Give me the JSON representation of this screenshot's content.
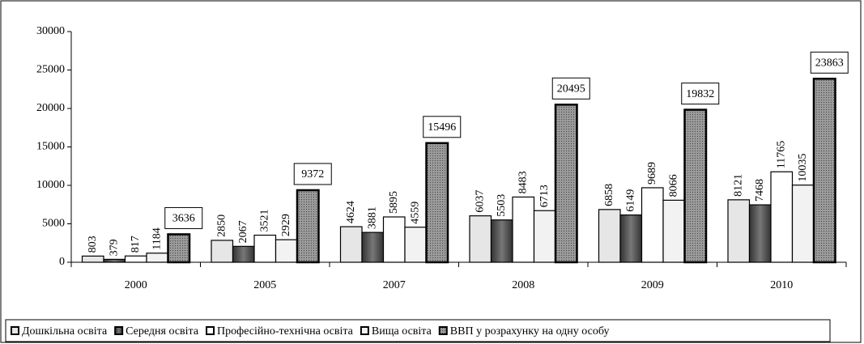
{
  "chart_data": {
    "type": "bar",
    "categories": [
      "2000",
      "2005",
      "2007",
      "2008",
      "2009",
      "2010"
    ],
    "series": [
      {
        "name": "Дошкільна освіта",
        "color": "#e6e6e6",
        "values": [
          803,
          2850,
          4624,
          6037,
          6858,
          8121
        ]
      },
      {
        "name": "Середня освіта",
        "color": "#4d4d4d",
        "values": [
          379,
          2067,
          3881,
          5503,
          6149,
          7468
        ]
      },
      {
        "name": "Професійно-технічна освіта",
        "color": "#ffffff",
        "values": [
          817,
          3521,
          5895,
          8483,
          9689,
          11765
        ]
      },
      {
        "name": "Вища освіта",
        "color": "#f2f2f2",
        "values": [
          1184,
          2929,
          4559,
          6713,
          8066,
          10035
        ]
      },
      {
        "name": "ВВП у розрахунку на одну особу",
        "color": "#7a7a7a",
        "values": [
          3636,
          9372,
          15496,
          20495,
          19832,
          23863
        ]
      }
    ],
    "ylim": [
      0,
      30000
    ],
    "yticks": [
      0,
      5000,
      10000,
      15000,
      20000,
      25000,
      30000
    ],
    "legend": "bottom",
    "grid": false
  }
}
